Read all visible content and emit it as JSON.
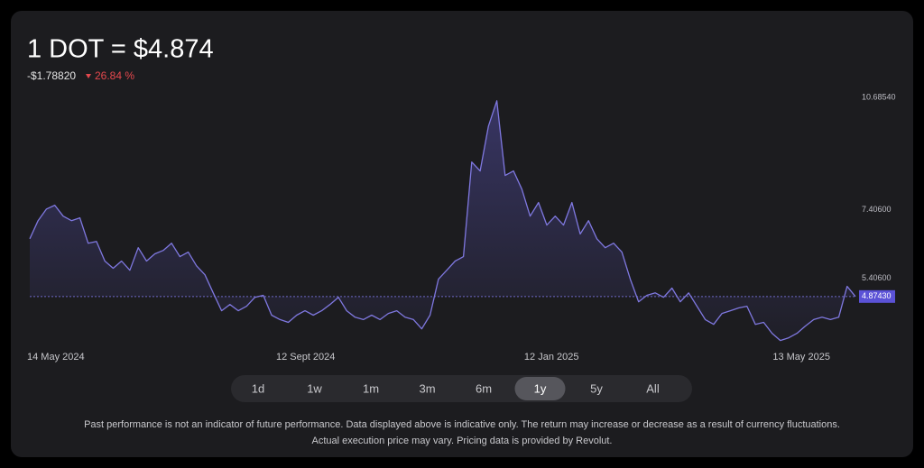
{
  "chart_data": {
    "type": "area",
    "title": "1 DOT = $4.874",
    "change": "-$1.78820",
    "change_percent": "26.84 %",
    "color": "#7f78e0",
    "values": [
      6.56,
      7.09,
      7.43,
      7.54,
      7.22,
      7.09,
      7.17,
      6.43,
      6.48,
      5.91,
      5.7,
      5.91,
      5.64,
      6.3,
      5.91,
      6.12,
      6.22,
      6.43,
      6.04,
      6.17,
      5.77,
      5.51,
      4.98,
      4.46,
      4.64,
      4.46,
      4.59,
      4.85,
      4.91,
      4.33,
      4.2,
      4.12,
      4.33,
      4.46,
      4.33,
      4.46,
      4.64,
      4.85,
      4.46,
      4.27,
      4.2,
      4.33,
      4.2,
      4.38,
      4.46,
      4.27,
      4.2,
      3.93,
      4.33,
      5.38,
      5.64,
      5.91,
      6.04,
      8.8,
      8.54,
      9.85,
      10.59,
      8.41,
      8.54,
      8.01,
      7.22,
      7.62,
      6.96,
      7.22,
      6.96,
      7.62,
      6.7,
      7.09,
      6.56,
      6.3,
      6.43,
      6.17,
      5.38,
      4.72,
      4.91,
      4.98,
      4.85,
      5.12,
      4.72,
      4.98,
      4.59,
      4.2,
      4.06,
      4.38,
      4.46,
      4.54,
      4.59,
      4.06,
      4.12,
      3.8,
      3.59,
      3.67,
      3.8,
      4.01,
      4.2,
      4.27,
      4.2,
      4.27,
      5.17,
      4.874
    ],
    "xlim": [
      0,
      99
    ],
    "xticks": [
      {
        "value": 0,
        "label": "14 May 2024"
      },
      {
        "value": 29.75,
        "label": "12 Sept 2024"
      },
      {
        "value": 59.5,
        "label": "12 Jan 2025"
      },
      {
        "value": 89.3,
        "label": "13 May 2025"
      }
    ],
    "ylim": [
      3.0,
      10.9
    ],
    "yticks": [
      {
        "value": 10.6854,
        "label": "10.68540"
      },
      {
        "value": 7.406,
        "label": "7.40600"
      },
      {
        "value": 5.406,
        "label": "5.40600"
      }
    ],
    "current": {
      "value": 4.8743,
      "label": "4.87430"
    },
    "ranges": [
      "1d",
      "1w",
      "1m",
      "3m",
      "6m",
      "1y",
      "5y",
      "All"
    ],
    "selected": "1y",
    "disclaimer": [
      "Past performance is not an indicator of future performance. Data displayed above is indicative only. The return may increase or decrease as a result of currency fluctuations.",
      "Actual execution price may vary. Pricing data is provided by Revolut."
    ]
  }
}
